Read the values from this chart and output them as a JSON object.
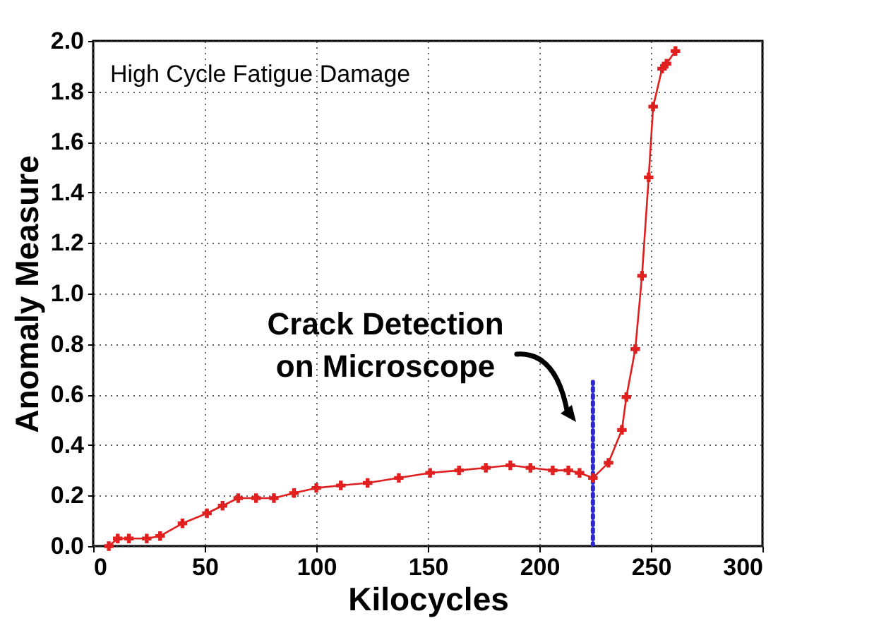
{
  "chart_data": {
    "type": "line",
    "xlabel": "Kilocycles",
    "ylabel": "Anomaly Measure",
    "xlim": [
      0,
      300
    ],
    "xticks": [
      0,
      50,
      100,
      150,
      200,
      250,
      300
    ],
    "ylim": [
      0,
      2
    ],
    "yticks": [
      {
        "value": 0,
        "label": "0.0"
      },
      {
        "value": 0.2,
        "label": "0.2"
      },
      {
        "value": 0.4,
        "label": "0.4"
      },
      {
        "value": 0.6,
        "label": "0.6"
      },
      {
        "value": 0.8,
        "label": "0.8"
      },
      {
        "value": 1,
        "label": "1.0"
      },
      {
        "value": 1.2,
        "label": "1.2"
      },
      {
        "value": 1.4,
        "label": "1.4"
      },
      {
        "value": 1.6,
        "label": "1.6"
      },
      {
        "value": 1.8,
        "label": "1.8"
      },
      {
        "value": 2,
        "label": "2.0"
      }
    ],
    "grid": true,
    "marker": "cross",
    "series": [
      {
        "color": "#2a2ad0",
        "marker": "none",
        "line_style": "dotted",
        "x": [
          224,
          224
        ],
        "values": [
          0,
          0.65
        ]
      },
      {
        "color": "#e01f1f",
        "line_style": "solid",
        "x": [
          7,
          11,
          16,
          24,
          30,
          40,
          51,
          58,
          65,
          73,
          81,
          90,
          100,
          111,
          123,
          137,
          151,
          164,
          176,
          187,
          196,
          206,
          213,
          218,
          224,
          231,
          237,
          239,
          243,
          246,
          249,
          251,
          255,
          257,
          261
        ],
        "values": [
          0,
          0.03,
          0.03,
          0.03,
          0.04,
          0.09,
          0.13,
          0.16,
          0.19,
          0.19,
          0.19,
          0.21,
          0.23,
          0.24,
          0.25,
          0.27,
          0.29,
          0.3,
          0.31,
          0.32,
          0.31,
          0.3,
          0.3,
          0.29,
          0.27,
          0.33,
          0.46,
          0.59,
          0.78,
          1.07,
          1.46,
          1.74,
          1.89,
          1.91,
          1.96
        ]
      }
    ],
    "annotations": [
      "High Cycle Fatigue Damage",
      "Crack Detection\non Microscope"
    ]
  }
}
